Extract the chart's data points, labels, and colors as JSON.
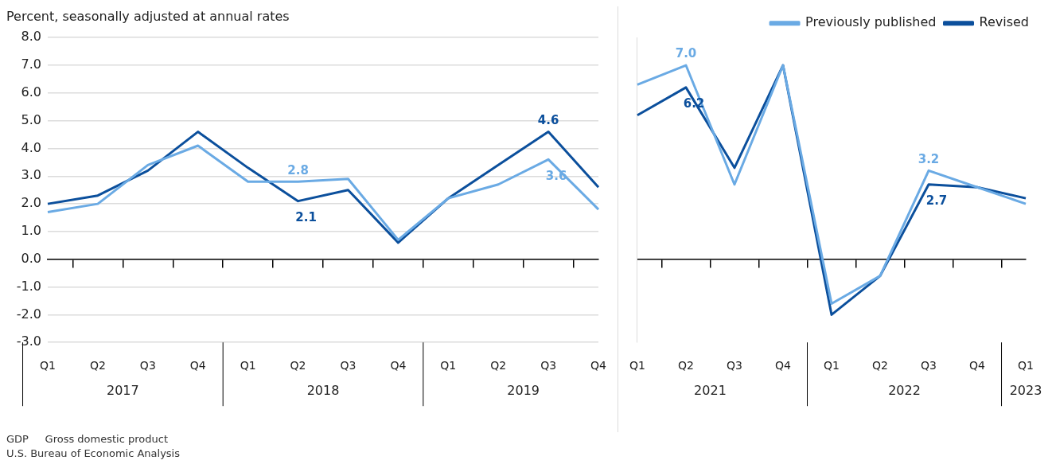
{
  "chart_data": [
    {
      "type": "line",
      "title": "Percent, seasonally adjusted at annual rates",
      "categories": [
        "Q1",
        "Q2",
        "Q3",
        "Q4",
        "Q1",
        "Q2",
        "Q3",
        "Q4",
        "Q1",
        "Q2",
        "Q3",
        "Q4"
      ],
      "series": [
        {
          "color": "#6aaae4",
          "values": [
            1.7,
            2.0,
            3.4,
            4.1,
            2.8,
            2.8,
            2.9,
            0.7,
            2.2,
            2.7,
            3.6,
            1.8
          ],
          "value_labels": [
            null,
            null,
            null,
            null,
            null,
            "2.8",
            null,
            null,
            null,
            null,
            "3.6",
            null
          ]
        },
        {
          "color": "#0b4f9c",
          "values": [
            2.0,
            2.3,
            3.2,
            4.6,
            3.3,
            2.1,
            2.5,
            0.6,
            2.2,
            3.4,
            4.6,
            2.6
          ],
          "value_labels": [
            null,
            null,
            null,
            null,
            null,
            "2.1",
            null,
            null,
            null,
            null,
            "4.6",
            null
          ]
        }
      ],
      "ylim": [
        -3,
        8
      ],
      "yticks": [
        {
          "value": -3,
          "label": "-3.0"
        },
        {
          "value": -2,
          "label": "-2.0"
        },
        {
          "value": -1,
          "label": "-1.0"
        },
        {
          "value": 0,
          "label": "0.0"
        },
        {
          "value": 1,
          "label": "1.0"
        },
        {
          "value": 2,
          "label": "2.0"
        },
        {
          "value": 3,
          "label": "3.0"
        },
        {
          "value": 4,
          "label": "4.0"
        },
        {
          "value": 5,
          "label": "5.0"
        },
        {
          "value": 6,
          "label": "6.0"
        },
        {
          "value": 7,
          "label": "7.0"
        },
        {
          "value": 8,
          "label": "8.0"
        }
      ],
      "grid": "y",
      "legend": false,
      "marker": "none",
      "line_style": "solid",
      "annotations": [
        "2017",
        "2018",
        "2019",
        "GDP     Gross domestic product",
        "U.S. Bureau of Economic Analysis"
      ]
    },
    {
      "type": "line",
      "categories": [
        "Q1",
        "Q2",
        "Q3",
        "Q4",
        "Q1",
        "Q2",
        "Q3",
        "Q4",
        "Q1"
      ],
      "series": [
        {
          "name": "Previously published",
          "color": "#6aaae4",
          "values": [
            6.3,
            7.0,
            2.7,
            7.0,
            -1.6,
            -0.6,
            3.2,
            2.6,
            2.0
          ],
          "value_labels": [
            null,
            "7.0",
            null,
            null,
            null,
            null,
            "3.2",
            null,
            null
          ]
        },
        {
          "name": "Revised",
          "color": "#0b4f9c",
          "values": [
            5.2,
            6.2,
            3.3,
            7.0,
            -2.0,
            -0.6,
            2.7,
            2.6,
            2.2
          ],
          "value_labels": [
            null,
            "6.2",
            null,
            null,
            null,
            null,
            "2.7",
            null,
            null
          ]
        }
      ],
      "ylim": [
        -3,
        8
      ],
      "grid": "y",
      "legend": "top right",
      "marker": "none",
      "line_style": "solid",
      "tick_labels": "x",
      "yticks": [
        {
          "value": -3,
          "label": null
        },
        {
          "value": -2,
          "label": null
        },
        {
          "value": -1,
          "label": null
        },
        {
          "value": 0,
          "label": null
        },
        {
          "value": 1,
          "label": null
        },
        {
          "value": 2,
          "label": null
        },
        {
          "value": 3,
          "label": null
        },
        {
          "value": 4,
          "label": null
        },
        {
          "value": 5,
          "label": null
        },
        {
          "value": 6,
          "label": null
        },
        {
          "value": 7,
          "label": null
        },
        {
          "value": 8,
          "label": null
        }
      ],
      "annotations": [
        "2021",
        "2022",
        "2023"
      ]
    }
  ]
}
